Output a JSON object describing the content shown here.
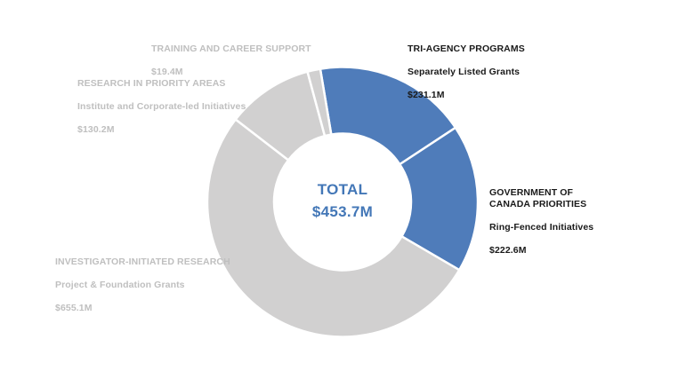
{
  "chart_data": {
    "type": "pie",
    "subtype": "donut",
    "title": "",
    "legend": "none",
    "labels_position": "outside",
    "start_angle_deg": -9.5,
    "direction": "clockwise",
    "hole_ratio": 0.51,
    "units": "millions CAD",
    "center_label": {
      "label": "TOTAL",
      "value": "$453.7M"
    },
    "segments": [
      {
        "name": "TRI-AGENCY PROGRAMS",
        "label": "TRI-AGENCY PROGRAMS",
        "sublabel": "Separately Listed Grants",
        "value": 231.1,
        "display_value": "$231.1M",
        "color": "#4f7cba",
        "emphasis": true
      },
      {
        "name": "GOVERNMENT OF CANADA PRIORITIES",
        "label": "GOVERNMENT OF\nCANADA PRIORITIES",
        "sublabel": "Ring-Fenced Initiatives",
        "value": 222.6,
        "display_value": "$222.6M",
        "color": "#4f7cba",
        "emphasis": true
      },
      {
        "name": "INVESTIGATOR-INITIATED RESEARCH",
        "label": "INVESTIGATOR-INITIATED RESEARCH",
        "sublabel": "Project & Foundation Grants",
        "value": 655.1,
        "display_value": "$655.1M",
        "color": "#d1d0d0",
        "emphasis": false
      },
      {
        "name": "RESEARCH IN PRIORITY AREAS",
        "label": "RESEARCH IN PRIORITY AREAS",
        "sublabel": "Institute and Corporate-led Initiatives",
        "value": 130.2,
        "display_value": "$130.2M",
        "color": "#d1d0d0",
        "emphasis": false
      },
      {
        "name": "TRAINING AND CAREER SUPPORT",
        "label": "TRAINING AND CAREER SUPPORT",
        "sublabel": "",
        "value": 19.4,
        "display_value": "$19.4M",
        "color": "#d1d0d0",
        "emphasis": false
      }
    ],
    "colors": {
      "accent_blue": "#4f7cba",
      "neutral_gray": "#d1d0d0",
      "muted_text": "#bfbfbf",
      "dark_text": "#1a1a1a",
      "center_text": "#4377b7",
      "separator": "#ffffff"
    }
  }
}
